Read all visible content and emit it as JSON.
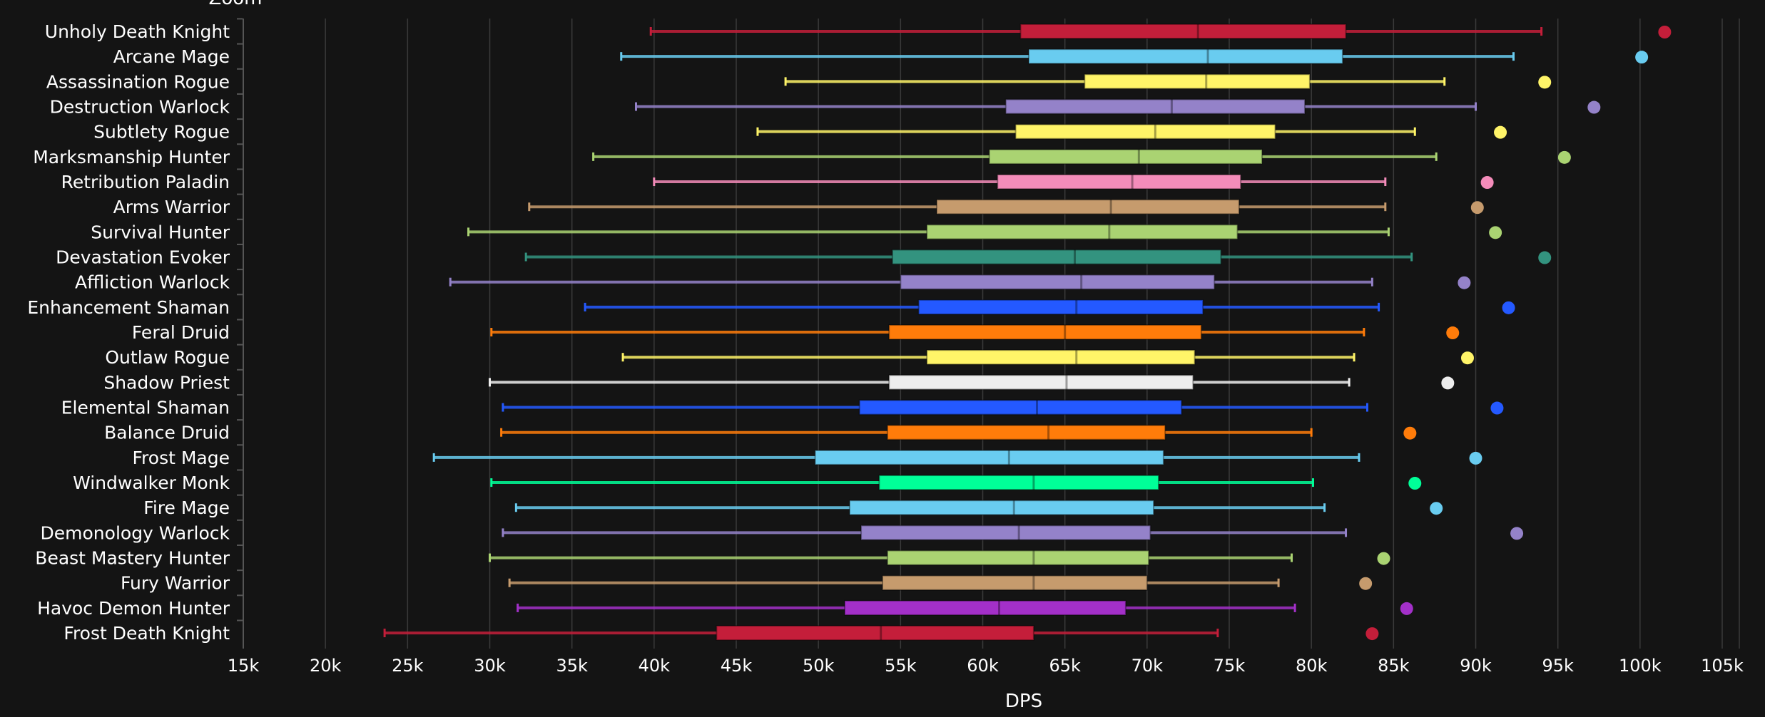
{
  "chart_data": {
    "type": "box",
    "title": "Zoom",
    "xlabel": "DPS",
    "ylabel": "",
    "xlim": [
      15000,
      105000
    ],
    "xticks": [
      "15k",
      "20k",
      "25k",
      "30k",
      "35k",
      "40k",
      "45k",
      "50k",
      "55k",
      "60k",
      "65k",
      "70k",
      "75k",
      "80k",
      "85k",
      "90k",
      "95k",
      "100k",
      "105k"
    ],
    "grid": true,
    "series": [
      {
        "name": "Unholy Death Knight",
        "color": "#C41E3A",
        "min": 39800,
        "q1": 62300,
        "median": 73100,
        "q3": 82100,
        "max": 94000,
        "outlier": 101500
      },
      {
        "name": "Arcane Mage",
        "color": "#69CCF0",
        "min": 38000,
        "q1": 62800,
        "median": 73700,
        "q3": 81900,
        "max": 92300,
        "outlier": 100100
      },
      {
        "name": "Assassination Rogue",
        "color": "#FFF468",
        "min": 48000,
        "q1": 66200,
        "median": 73600,
        "q3": 79900,
        "max": 88100,
        "outlier": 94200
      },
      {
        "name": "Destruction Warlock",
        "color": "#9482C9",
        "min": 38900,
        "q1": 61400,
        "median": 71500,
        "q3": 79600,
        "max": 90000,
        "outlier": 97200
      },
      {
        "name": "Subtlety Rogue",
        "color": "#FFF468",
        "min": 46300,
        "q1": 62000,
        "median": 70500,
        "q3": 77800,
        "max": 86300,
        "outlier": 91500
      },
      {
        "name": "Marksmanship Hunter",
        "color": "#AAD372",
        "min": 36300,
        "q1": 60400,
        "median": 69500,
        "q3": 77000,
        "max": 87600,
        "outlier": 95400
      },
      {
        "name": "Retribution Paladin",
        "color": "#F48CBA",
        "min": 40000,
        "q1": 60900,
        "median": 69100,
        "q3": 75700,
        "max": 84500,
        "outlier": 90700
      },
      {
        "name": "Arms Warrior",
        "color": "#C69B6D",
        "min": 32400,
        "q1": 57200,
        "median": 67800,
        "q3": 75600,
        "max": 84500,
        "outlier": 90100
      },
      {
        "name": "Survival Hunter",
        "color": "#AAD372",
        "min": 28700,
        "q1": 56600,
        "median": 67700,
        "q3": 75500,
        "max": 84700,
        "outlier": 91200
      },
      {
        "name": "Devastation Evoker",
        "color": "#33937F",
        "min": 32200,
        "q1": 54500,
        "median": 65600,
        "q3": 74500,
        "max": 86100,
        "outlier": 94200
      },
      {
        "name": "Affliction Warlock",
        "color": "#9482C9",
        "min": 27600,
        "q1": 55000,
        "median": 66000,
        "q3": 74100,
        "max": 83700,
        "outlier": 89300
      },
      {
        "name": "Enhancement Shaman",
        "color": "#2459FF",
        "min": 35800,
        "q1": 56100,
        "median": 65700,
        "q3": 73400,
        "max": 84100,
        "outlier": 92000
      },
      {
        "name": "Feral Druid",
        "color": "#FF7C0A",
        "min": 30100,
        "q1": 54300,
        "median": 65000,
        "q3": 73300,
        "max": 83200,
        "outlier": 88600
      },
      {
        "name": "Outlaw Rogue",
        "color": "#FFF468",
        "min": 38100,
        "q1": 56600,
        "median": 65700,
        "q3": 72900,
        "max": 82600,
        "outlier": 89500
      },
      {
        "name": "Shadow Priest",
        "color": "#EEEEEE",
        "min": 30000,
        "q1": 54300,
        "median": 65100,
        "q3": 72800,
        "max": 82300,
        "outlier": 88300
      },
      {
        "name": "Elemental Shaman",
        "color": "#2459FF",
        "min": 30800,
        "q1": 52500,
        "median": 63300,
        "q3": 72100,
        "max": 83400,
        "outlier": 91300
      },
      {
        "name": "Balance Druid",
        "color": "#FF7C0A",
        "min": 30700,
        "q1": 54200,
        "median": 64000,
        "q3": 71100,
        "max": 80000,
        "outlier": 86000
      },
      {
        "name": "Frost Mage",
        "color": "#69CCF0",
        "min": 26600,
        "q1": 49800,
        "median": 61600,
        "q3": 71000,
        "max": 82900,
        "outlier": 90000
      },
      {
        "name": "Windwalker Monk",
        "color": "#00FF98",
        "min": 30100,
        "q1": 53700,
        "median": 63100,
        "q3": 70700,
        "max": 80100,
        "outlier": 86300
      },
      {
        "name": "Fire Mage",
        "color": "#69CCF0",
        "min": 31600,
        "q1": 51900,
        "median": 61900,
        "q3": 70400,
        "max": 80800,
        "outlier": 87600
      },
      {
        "name": "Demonology Warlock",
        "color": "#9482C9",
        "min": 30800,
        "q1": 52600,
        "median": 62200,
        "q3": 70200,
        "max": 82100,
        "outlier": 92500
      },
      {
        "name": "Beast Mastery Hunter",
        "color": "#AAD372",
        "min": 30000,
        "q1": 54200,
        "median": 63100,
        "q3": 70100,
        "max": 78800,
        "outlier": 84400
      },
      {
        "name": "Fury Warrior",
        "color": "#C69B6D",
        "min": 31200,
        "q1": 53900,
        "median": 63100,
        "q3": 70000,
        "max": 78000,
        "outlier": 83300
      },
      {
        "name": "Havoc Demon Hunter",
        "color": "#A330C9",
        "min": 31700,
        "q1": 51600,
        "median": 61000,
        "q3": 68700,
        "max": 79000,
        "outlier": 85800
      },
      {
        "name": "Frost Death Knight",
        "color": "#C41E3A",
        "min": 23600,
        "q1": 43800,
        "median": 53800,
        "q3": 63100,
        "max": 74300,
        "outlier": 83700
      }
    ]
  }
}
